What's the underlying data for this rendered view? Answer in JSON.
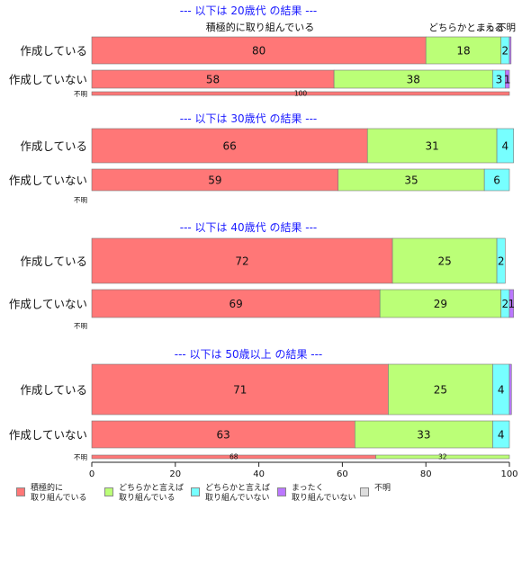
{
  "chart_data": {
    "type": "bar",
    "orientation": "horizontal",
    "stacked": true,
    "xlim": [
      0,
      100
    ],
    "x_ticks": [
      "0",
      "20",
      "40",
      "60",
      "80",
      "100"
    ],
    "top_labels": [
      "積極的に取り組んでいる",
      "どちらかと...える",
      "まっ...",
      "不明"
    ],
    "legend": [
      {
        "name": "積極的に\n取り組んでいる",
        "color": "#ff7777"
      },
      {
        "name": "どちらかと言えば\n取り組んでいる",
        "color": "#bbff77"
      },
      {
        "name": "どちらかと言えば\n取り組んでいない",
        "color": "#77ffff"
      },
      {
        "name": "まったく\n取り組んでいない",
        "color": "#bb77ff"
      },
      {
        "name": "不明",
        "color": "#dddddd"
      }
    ],
    "groups": [
      {
        "title": "--- 以下は 20歳代 の結果 ---",
        "rows": [
          {
            "label": "作成している",
            "values": [
              80,
              18,
              2,
              0.4,
              0
            ],
            "labels": [
              "80",
              "18",
              "2",
              "",
              ""
            ]
          },
          {
            "label": "作成していない",
            "values": [
              58,
              38,
              3,
              1,
              0
            ],
            "labels": [
              "58",
              "38",
              "3",
              "1",
              ""
            ]
          }
        ],
        "unknown": {
          "label": "不明",
          "values": [
            100,
            0,
            0,
            0,
            0
          ],
          "labels": [
            "100",
            "",
            "",
            "",
            ""
          ]
        }
      },
      {
        "title": "--- 以下は 30歳代 の結果 ---",
        "rows": [
          {
            "label": "作成している",
            "values": [
              66,
              31,
              4,
              0,
              0
            ],
            "labels": [
              "66",
              "31",
              "4",
              "",
              ""
            ]
          },
          {
            "label": "作成していない",
            "values": [
              59,
              35,
              6,
              0,
              0
            ],
            "labels": [
              "59",
              "35",
              "6",
              "",
              ""
            ]
          }
        ],
        "unknown": {
          "label": "不明",
          "values": [
            0,
            0,
            0,
            0,
            0
          ],
          "labels": [
            "",
            "",
            "",
            "",
            ""
          ]
        }
      },
      {
        "title": "--- 以下は 40歳代 の結果 ---",
        "rows": [
          {
            "label": "作成している",
            "values": [
              72,
              25,
              2,
              0,
              0
            ],
            "labels": [
              "72",
              "25",
              "2",
              "",
              ""
            ]
          },
          {
            "label": "作成していない",
            "values": [
              69,
              29,
              2,
              1,
              0
            ],
            "labels": [
              "69",
              "29",
              "2",
              "1",
              ""
            ]
          }
        ],
        "unknown": {
          "label": "不明",
          "values": [
            0,
            0,
            0,
            0,
            0
          ],
          "labels": [
            "",
            "",
            "",
            "",
            ""
          ]
        }
      },
      {
        "title": "--- 以下は 50歳以上 の結果 ---",
        "rows": [
          {
            "label": "作成している",
            "values": [
              71,
              25,
              4,
              0.5,
              0
            ],
            "labels": [
              "71",
              "25",
              "4",
              "",
              ""
            ]
          },
          {
            "label": "作成していない",
            "values": [
              63,
              33,
              4,
              0,
              0
            ],
            "labels": [
              "63",
              "33",
              "4",
              "",
              ""
            ]
          }
        ],
        "unknown": {
          "label": "不明",
          "values": [
            68,
            32,
            0,
            0,
            0
          ],
          "labels": [
            "68",
            "32",
            "",
            "",
            ""
          ]
        }
      }
    ]
  }
}
